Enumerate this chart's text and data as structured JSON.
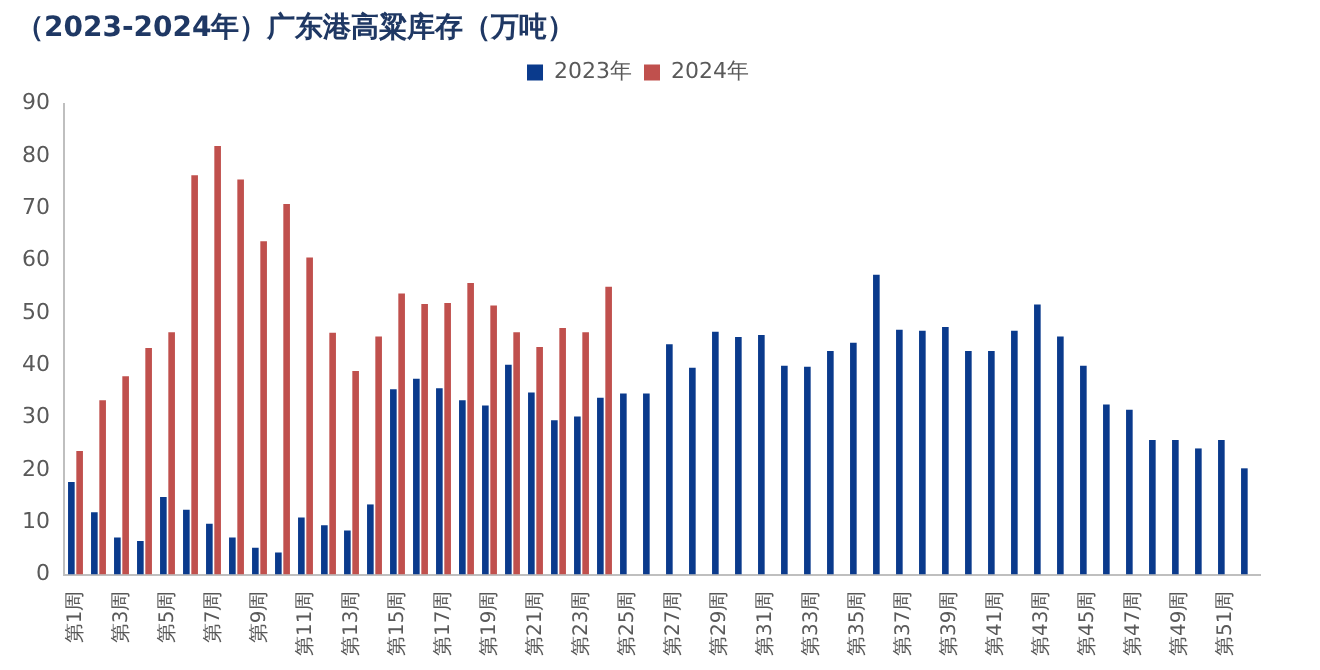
{
  "chart_data": {
    "type": "bar",
    "title": "（2023-2024年）广东港高粱库存（万吨）",
    "categories": [
      "第1周",
      null,
      "第3周",
      null,
      "第5周",
      null,
      "第7周",
      null,
      "第9周",
      null,
      "第11周",
      null,
      "第13周",
      null,
      "第15周",
      null,
      "第17周",
      null,
      "第19周",
      null,
      "第21周",
      null,
      "第23周",
      null,
      "第25周",
      null,
      "第27周",
      null,
      "第29周",
      null,
      "第31周",
      null,
      "第33周",
      null,
      "第35周",
      null,
      "第37周",
      null,
      "第39周",
      null,
      "第41周",
      null,
      "第43周",
      null,
      "第45周",
      null,
      "第47周",
      null,
      "第49周",
      null,
      "第51周",
      null
    ],
    "series": [
      {
        "name": "2023年",
        "color": "#0a3a8c",
        "values": [
          17.7,
          11.9,
          7.1,
          6.4,
          14.8,
          12.4,
          9.7,
          7.1,
          5.1,
          4.2,
          10.9,
          9.4,
          8.4,
          13.4,
          35.4,
          37.4,
          35.6,
          33.3,
          32.3,
          40.1,
          34.8,
          29.5,
          30.2,
          33.8,
          34.6,
          34.6,
          44.0,
          39.5,
          46.4,
          45.4,
          45.8,
          39.9,
          39.7,
          42.7,
          44.3,
          57.3,
          46.8,
          46.6,
          47.3,
          42.7,
          42.7,
          46.6,
          51.6,
          45.5,
          39.9,
          32.5,
          31.5,
          25.7,
          25.7,
          24.1,
          25.7,
          20.3
        ]
      },
      {
        "name": "2024年",
        "color": "#c0504d",
        "values": [
          23.6,
          33.3,
          37.9,
          43.3,
          46.3,
          76.3,
          81.9,
          75.5,
          63.7,
          70.8,
          60.6,
          46.2,
          38.9,
          45.5,
          53.7,
          51.7,
          51.9,
          55.7,
          51.4,
          46.3,
          43.5,
          47.1,
          46.3,
          55.0,
          null,
          null,
          null,
          null,
          null,
          null,
          null,
          null,
          null,
          null,
          null,
          null,
          null,
          null,
          null,
          null,
          null,
          null,
          null,
          null,
          null,
          null,
          null,
          null,
          null,
          null,
          null,
          null
        ]
      }
    ],
    "ylim": [
      0,
      90
    ],
    "yticks": [
      0,
      10,
      20,
      30,
      40,
      50,
      60,
      70,
      80,
      90
    ],
    "grid": false,
    "legend": "top"
  }
}
